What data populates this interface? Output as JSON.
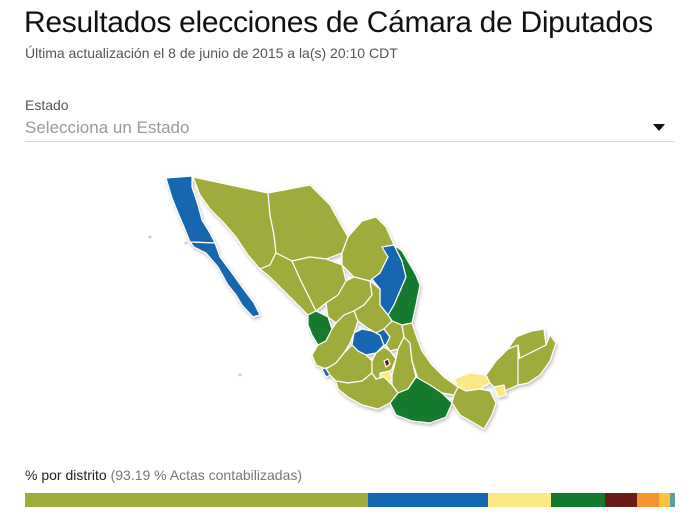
{
  "header": {
    "title": "Resultados elecciones de Cámara de Diputados",
    "subtitle": "Última actualización el 8 de junio de 2015 a la(s) 20:10 CDT"
  },
  "state_select": {
    "label": "Estado",
    "placeholder": "Selecciona un Estado",
    "icon": "caret-down-icon"
  },
  "map": {
    "name": "Mexico electoral map by state",
    "colors": {
      "olive": "#9fac3a",
      "blue": "#1566b0",
      "green": "#127a2e",
      "yellow": "#fbe985",
      "maroon": "#6b1a17",
      "border": "#ffffff"
    }
  },
  "district_bar": {
    "label": "% por distrito",
    "note": "(93.19 % Actas contabilizadas)",
    "segments": [
      {
        "name": "party-olive",
        "color": "#9fac3a",
        "pct": 52.8
      },
      {
        "name": "party-blue",
        "color": "#1566b0",
        "pct": 18.5
      },
      {
        "name": "party-yellow",
        "color": "#fbe985",
        "pct": 9.7
      },
      {
        "name": "party-green",
        "color": "#127a2e",
        "pct": 8.3
      },
      {
        "name": "party-maroon",
        "color": "#6b1a17",
        "pct": 4.8
      },
      {
        "name": "party-orange",
        "color": "#f39331",
        "pct": 3.5
      },
      {
        "name": "party-light-orange",
        "color": "#fcc33c",
        "pct": 1.7
      },
      {
        "name": "party-teal",
        "color": "#5f9ea0",
        "pct": 0.7
      }
    ]
  }
}
